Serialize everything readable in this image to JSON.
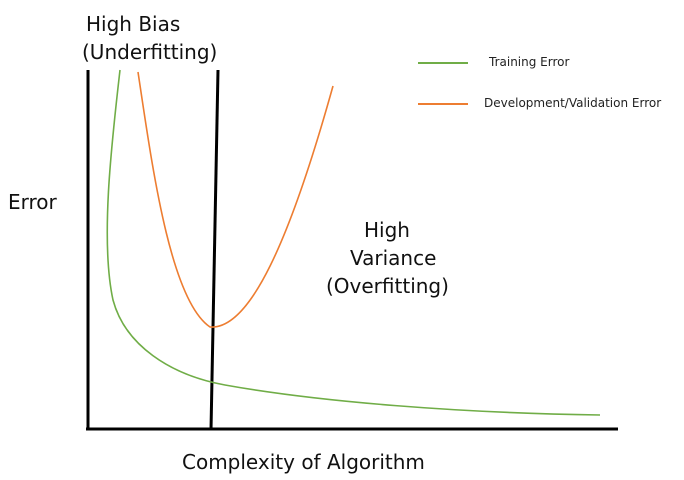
{
  "labels": {
    "high_bias_line1": "High Bias",
    "high_bias_line2": "(Underfitting)",
    "high_variance_line1": "High",
    "high_variance_line2": "Variance",
    "high_variance_line3": "(Overfitting)",
    "y_axis": "Error",
    "x_axis": "Complexity of Algorithm"
  },
  "legend": [
    {
      "label": "Training Error",
      "color": "#70ad47"
    },
    {
      "label": "Development/Validation Error",
      "color": "#ed7d31"
    }
  ],
  "colors": {
    "training": "#70ad47",
    "validation": "#ed7d31",
    "axis": "#000000"
  }
}
